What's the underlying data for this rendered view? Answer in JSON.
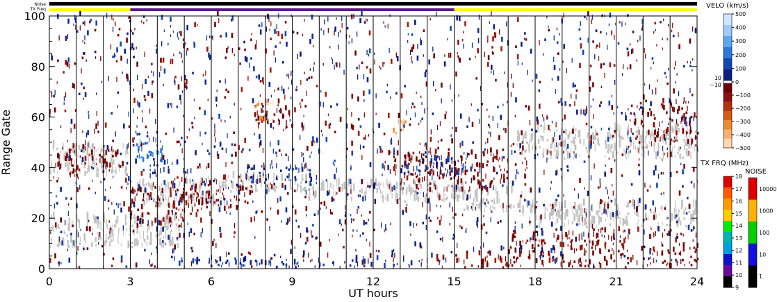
{
  "chart_data": {
    "type": "heatmap",
    "xlabel": "UT hours",
    "ylabel": "Range Gate",
    "xlim": [
      0,
      24
    ],
    "ylim": [
      0,
      100
    ],
    "x_ticks": [
      "0",
      "3",
      "6",
      "9",
      "12",
      "15",
      "18",
      "21",
      "24"
    ],
    "y_ticks": [
      "0",
      "20",
      "40",
      "60",
      "80",
      "100"
    ],
    "grid": "vertical scan lines each UT hour",
    "top_bars": {
      "noise_label": "Noise",
      "txfreq_label": "TX Freq",
      "txfreq_segments": [
        {
          "from": 0,
          "to": 3,
          "color": "#ffff00"
        },
        {
          "from": 3,
          "to": 15,
          "color": "#5a1a8a"
        },
        {
          "from": 15,
          "to": 24,
          "color": "#ffff00"
        }
      ]
    },
    "velocity_scale": {
      "title": "VELO (km/s)",
      "positive_labels": [
        "500",
        "400",
        "300",
        "200",
        "100",
        "0"
      ],
      "small_labels": [
        "10",
        "−10"
      ],
      "negative_labels": [
        "−100",
        "−200",
        "−300",
        "−400",
        "−500"
      ],
      "positive_colors": [
        "#cfe6ff",
        "#9ccbff",
        "#5aa8f0",
        "#2c78d8",
        "#1446b0",
        "#0a1e84"
      ],
      "negative_colors": [
        "#6e0000",
        "#8c1010",
        "#b23212",
        "#d85a14",
        "#ee8a30",
        "#f6b070",
        "#fcd8b0"
      ]
    },
    "txfreq_scale": {
      "title": "TX FRQ (MHz)",
      "labels": [
        "18",
        "17",
        "16",
        "15",
        "14",
        "13",
        "12",
        "11",
        "10",
        "9"
      ],
      "colors": [
        "#e00000",
        "#ff5a00",
        "#ff9a00",
        "#ffd000",
        "#00ee00",
        "#00b4b4",
        "#00a0e0",
        "#1010d0",
        "#6a0a9a",
        "#000000"
      ]
    },
    "noise_scale": {
      "title": "NOISE",
      "labels": [
        "10000",
        "1000",
        "100",
        "10",
        "1"
      ],
      "colors": [
        "#e00000",
        "#ffb000",
        "#00d000",
        "#1010e0",
        "#000000"
      ]
    },
    "scatter_regions": [
      {
        "kind": "ground",
        "x": [
          0,
          2.9
        ],
        "y": [
          36,
          48
        ]
      },
      {
        "kind": "ground",
        "x": [
          0,
          4.8
        ],
        "y": [
          8,
          20
        ]
      },
      {
        "kind": "ground",
        "x": [
          3.2,
          6.5
        ],
        "y": [
          24,
          34
        ]
      },
      {
        "kind": "ground",
        "x": [
          6.5,
          9.5
        ],
        "y": [
          30,
          36
        ]
      },
      {
        "kind": "ground",
        "x": [
          9.5,
          15.5
        ],
        "y": [
          26,
          33
        ]
      },
      {
        "kind": "ground",
        "x": [
          17.5,
          24
        ],
        "y": [
          16,
          25
        ]
      },
      {
        "kind": "ground",
        "x": [
          17.3,
          24
        ],
        "y": [
          43,
          55
        ]
      },
      {
        "kind": "ground",
        "x": [
          15.2,
          17.5
        ],
        "y": [
          22,
          30
        ]
      },
      {
        "kind": "neg",
        "x": [
          0.2,
          2.5
        ],
        "y": [
          36,
          48
        ]
      },
      {
        "kind": "neg",
        "x": [
          3.0,
          5.0
        ],
        "y": [
          16,
          31
        ]
      },
      {
        "kind": "neg",
        "x": [
          4.5,
          7.5
        ],
        "y": [
          22,
          36
        ]
      },
      {
        "kind": "neg",
        "x": [
          7.5,
          9.0
        ],
        "y": [
          55,
          68
        ]
      },
      {
        "kind": "neg",
        "x": [
          12.5,
          17.0
        ],
        "y": [
          30,
          46
        ]
      },
      {
        "kind": "neg",
        "x": [
          14.0,
          24.0
        ],
        "y": [
          0,
          4
        ]
      },
      {
        "kind": "neg",
        "x": [
          17.0,
          24.0
        ],
        "y": [
          5,
          15
        ]
      },
      {
        "kind": "neg",
        "x": [
          21.5,
          24.0
        ],
        "y": [
          48,
          66
        ]
      },
      {
        "kind": "neg",
        "x": [
          0,
          24
        ],
        "y": [
          0,
          100
        ]
      },
      {
        "kind": "pos",
        "x": [
          3.3,
          4.8
        ],
        "y": [
          37,
          42
        ]
      },
      {
        "kind": "pos",
        "x": [
          7.0,
          9.7
        ],
        "y": [
          32,
          40
        ]
      },
      {
        "kind": "pos",
        "x": [
          4.5,
          15.0
        ],
        "y": [
          0,
          3
        ]
      },
      {
        "kind": "pos",
        "x": [
          13.0,
          15.5
        ],
        "y": [
          36,
          46
        ]
      },
      {
        "kind": "pos",
        "x": [
          0,
          24
        ],
        "y": [
          0,
          100
        ]
      },
      {
        "kind": "poslight",
        "x": [
          3.2,
          4.2
        ],
        "y": [
          42,
          50
        ]
      },
      {
        "kind": "orange",
        "x": [
          12.7,
          13.3
        ],
        "y": [
          52,
          58
        ]
      },
      {
        "kind": "orange",
        "x": [
          7.6,
          8.3
        ],
        "y": [
          58,
          66
        ]
      }
    ]
  }
}
